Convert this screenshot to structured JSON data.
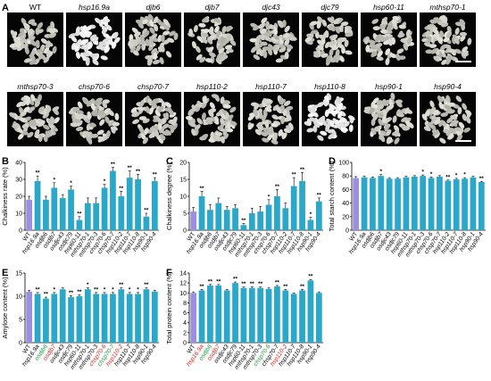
{
  "panel_labels": [
    "A",
    "B",
    "C",
    "D",
    "E",
    "F"
  ],
  "grain_rows": [
    [
      "WT",
      "hsp16.9a",
      "djb6",
      "djb7",
      "djc43",
      "djc79",
      "hsp60-11",
      "mthsp70-1"
    ],
    [
      "mthsp70-3",
      "chsp70-6",
      "chsp70-7",
      "hsp110-2",
      "hsp110-7",
      "hsp110-8",
      "hsp90-1",
      "hsp90-4"
    ]
  ],
  "grain_photo_dark": [
    "hsp16.9a",
    "hsp110-8"
  ],
  "colors": {
    "wt_bar": "#9b8fe0",
    "mutant_bar": "#2aa7c9",
    "green_label": "#1a9b3a",
    "red_label": "#d4261f"
  },
  "chart_data": [
    {
      "panel": "B",
      "type": "bar",
      "ylabel": "Chalkiness rate (%)",
      "ylim": [
        0,
        40
      ],
      "yticks": [
        0,
        10,
        20,
        30,
        40
      ],
      "categories": [
        "WT",
        "hsp16.9a",
        "osdjb6",
        "osdjb7",
        "osdjc43",
        "osdjc79",
        "hsp60-11",
        "mthsp70-1",
        "mthsp70-3",
        "chsp70-6",
        "chsp70-7",
        "hsp110-2",
        "hsp110-7",
        "hsp110-8",
        "hsp90-1",
        "hsp90-4"
      ],
      "values": [
        18,
        29,
        18,
        25,
        19,
        24,
        6,
        16,
        16,
        25,
        35,
        20,
        31,
        30,
        8,
        29
      ],
      "errors": [
        2,
        3,
        2,
        3,
        2,
        2,
        2,
        3,
        3,
        2,
        2,
        3,
        4,
        3,
        2,
        2
      ],
      "sig": [
        "",
        "**",
        "",
        "*",
        "",
        "*",
        "**",
        "",
        "",
        "*",
        "**",
        "**",
        "**",
        "**",
        "**",
        "**"
      ]
    },
    {
      "panel": "C",
      "type": "bar",
      "ylabel": "Chalkiness degree (%)",
      "ylim": [
        0,
        20
      ],
      "yticks": [
        0,
        5,
        10,
        15,
        20
      ],
      "categories": [
        "WT",
        "hsp16.9a",
        "osdjb6",
        "osdjb7",
        "osdjc43",
        "osdjc79",
        "hsp60-11",
        "mthsp70-1",
        "mthsp70-3",
        "chsp70-6",
        "chsp70-7",
        "hsp110-2",
        "hsp110-7",
        "hsp110-8",
        "hsp90-1",
        "hsp90-4"
      ],
      "values": [
        5.5,
        10,
        6,
        8,
        6,
        6.5,
        1.5,
        5,
        5.5,
        7.5,
        10,
        6.5,
        13,
        14.5,
        3,
        8.5
      ],
      "errors": [
        1.2,
        1.5,
        1.5,
        1.5,
        1,
        1,
        0.5,
        1.5,
        1.5,
        1.5,
        2,
        1.5,
        2.5,
        2.5,
        0.8,
        1
      ],
      "sig": [
        "",
        "**",
        "",
        "",
        "",
        "",
        "**",
        "",
        "",
        "*",
        "**",
        "",
        "**",
        "**",
        "*",
        "**"
      ]
    },
    {
      "panel": "D",
      "type": "bar",
      "ylabel": "Total starch content (%)",
      "ylim": [
        0,
        100
      ],
      "yticks": [
        0,
        20,
        40,
        60,
        80,
        100
      ],
      "categories": [
        "WT",
        "hsp16.9a",
        "osdjb6",
        "osdjb7",
        "osdjc43",
        "osdjc79",
        "hsp60-11",
        "mthsp70-1",
        "mthsp70-3",
        "chsp70-6",
        "chsp70-7",
        "hsp110-2",
        "hsp110-7",
        "hsp110-8",
        "hsp90-1",
        "hsp90-4"
      ],
      "values": [
        77,
        78,
        77,
        80,
        76,
        76,
        78,
        79,
        80,
        77,
        79,
        73,
        75,
        76,
        78,
        71
      ],
      "errors": [
        2,
        2,
        1.5,
        2,
        1.5,
        1.5,
        1.5,
        1.5,
        1.5,
        1.5,
        1.5,
        1,
        1.5,
        1.5,
        1.5,
        1
      ],
      "sig": [
        "",
        "",
        "",
        "*",
        "",
        "",
        "",
        "",
        "*",
        "*",
        "",
        "**",
        "*",
        "*",
        "",
        "**"
      ]
    },
    {
      "panel": "E",
      "type": "bar",
      "ylabel": "Amylose content (%)",
      "ylim": [
        0,
        15
      ],
      "yticks": [
        0,
        5,
        10,
        15
      ],
      "categories": [
        "WT",
        "hsp16.9a",
        "osdjb6",
        "osdjb7",
        "osdjc43",
        "osdjc79",
        "hsp60-11",
        "mthsp70-1",
        "mthsp70-3",
        "chsp70-6",
        "chsp70-7",
        "hsp110-2",
        "hsp110-7",
        "hsp110-8",
        "hsp90-1",
        "hsp90-4"
      ],
      "values": [
        11,
        10.5,
        9.5,
        10.5,
        11.5,
        9.8,
        10,
        11.5,
        10.5,
        10.5,
        10.5,
        11.5,
        10.5,
        10.5,
        11.5,
        11
      ],
      "errors": [
        0.3,
        0.3,
        0.3,
        0.3,
        0.3,
        0.3,
        0.3,
        0.3,
        0.3,
        0.3,
        0.3,
        0.3,
        0.3,
        0.3,
        0.3,
        0.3
      ],
      "sig": [
        "",
        "**",
        "**",
        "*",
        "",
        "**",
        "**",
        "*",
        "**",
        "*",
        "*",
        "**",
        "*",
        "*",
        "**",
        ""
      ],
      "label_colors": [
        "",
        "",
        "green",
        "red",
        "",
        "",
        "",
        "",
        "",
        "red",
        "green",
        "red",
        "",
        "",
        "",
        ""
      ]
    },
    {
      "panel": "F",
      "type": "bar",
      "ylabel": "Total protein content (%)",
      "ylim": [
        0,
        14
      ],
      "yticks": [
        0,
        2,
        4,
        6,
        8,
        10,
        12,
        14
      ],
      "categories": [
        "WT",
        "hsp16.9a",
        "osdjb6",
        "osdjb7",
        "osdjc43",
        "osdjc79",
        "hsp60-11",
        "mthsp70-1",
        "mthsp70-3",
        "chsp70-6",
        "chsp70-7",
        "hsp110-2",
        "hsp110-7",
        "hsp110-8",
        "hsp90-1",
        "hsp90-4"
      ],
      "values": [
        10,
        10.5,
        11.5,
        11.5,
        10.5,
        12,
        11,
        11,
        11,
        10.8,
        11.3,
        10.5,
        9.8,
        10.5,
        12.5,
        10
      ],
      "errors": [
        0.2,
        0.2,
        0.2,
        0.2,
        0.2,
        0.2,
        0.2,
        0.2,
        0.2,
        0.2,
        0.2,
        0.2,
        0.2,
        0.2,
        0.2,
        0.2
      ],
      "sig": [
        "",
        "**",
        "**",
        "**",
        "",
        "**",
        "**",
        "**",
        "**",
        "",
        "**",
        "**",
        "",
        "**",
        "**",
        ""
      ],
      "label_colors": [
        "",
        "red",
        "green",
        "red",
        "",
        "",
        "",
        "",
        "",
        "green",
        "",
        "red",
        "",
        "",
        "",
        ""
      ]
    }
  ]
}
